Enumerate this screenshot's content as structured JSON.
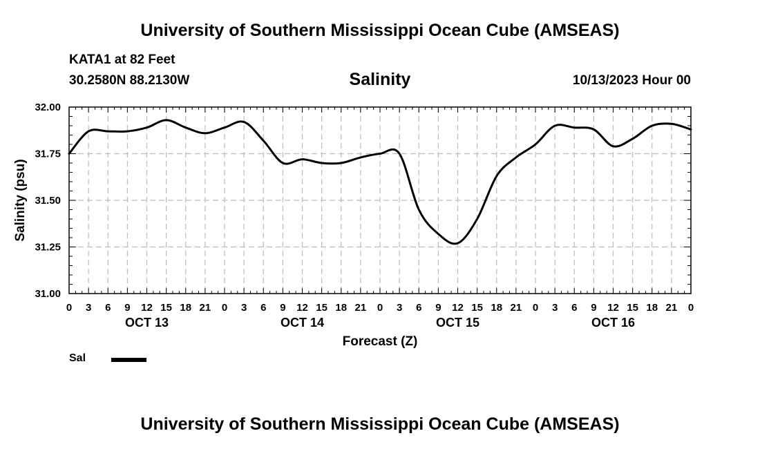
{
  "header": {
    "title": "University of Southern Mississippi Ocean Cube (AMSEAS)",
    "station": "KATA1 at 82 Feet",
    "coords": "30.2580N  88.2130W",
    "chart_title": "Salinity",
    "datetime": "10/13/2023 Hour 00"
  },
  "footer": {
    "title": "University of Southern Mississippi Ocean Cube (AMSEAS)"
  },
  "legend": {
    "label": "Sal"
  },
  "chart_data": {
    "type": "line",
    "title": "Salinity",
    "xlabel": "Forecast (Z)",
    "ylabel": "Salinity (psu)",
    "ylim": [
      31.0,
      32.0
    ],
    "y_ticks": [
      "31.00",
      "31.25",
      "31.50",
      "31.75",
      "32.00"
    ],
    "x_range_hours": [
      0,
      96
    ],
    "x_tick_labels": [
      "0",
      "3",
      "6",
      "9",
      "12",
      "15",
      "18",
      "21",
      "0",
      "3",
      "6",
      "9",
      "12",
      "15",
      "18",
      "21",
      "0",
      "3",
      "6",
      "9",
      "12",
      "15",
      "18",
      "21",
      "0",
      "3",
      "6",
      "9",
      "12",
      "15",
      "18",
      "21",
      "0"
    ],
    "day_labels": [
      "OCT 13",
      "OCT 14",
      "OCT 15",
      "OCT 16"
    ],
    "grid": true,
    "series": [
      {
        "name": "Sal",
        "x": [
          0,
          3,
          6,
          9,
          12,
          15,
          18,
          21,
          24,
          27,
          30,
          33,
          36,
          39,
          42,
          45,
          48,
          51,
          54,
          57,
          60,
          63,
          66,
          69,
          72,
          75,
          78,
          81,
          84,
          87,
          90,
          93,
          96
        ],
        "values": [
          31.75,
          31.87,
          31.87,
          31.87,
          31.89,
          31.93,
          31.89,
          31.86,
          31.89,
          31.92,
          31.82,
          31.7,
          31.72,
          31.7,
          31.7,
          31.73,
          31.75,
          31.75,
          31.45,
          31.32,
          31.27,
          31.4,
          31.63,
          31.73,
          31.8,
          31.9,
          31.89,
          31.88,
          31.79,
          31.83,
          31.9,
          31.91,
          31.88
        ]
      }
    ]
  }
}
